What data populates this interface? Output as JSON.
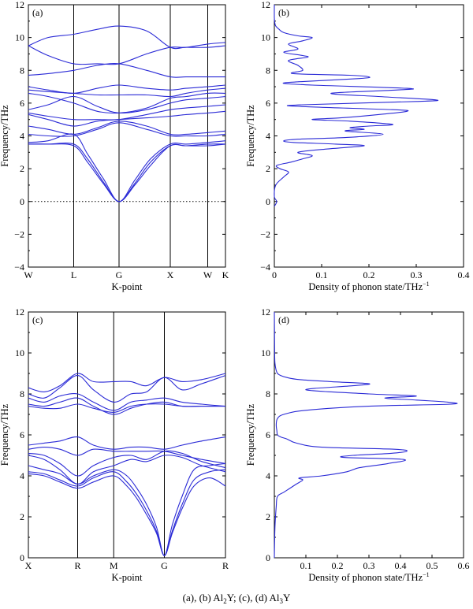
{
  "caption": {
    "prefix": "(a), (b) Al",
    "sub1": "2",
    "mid": "Y; (c), (d) Al",
    "sub2": "3",
    "suffix": "Y"
  },
  "colors": {
    "line": "#2a2ad6",
    "axis": "#000000"
  },
  "chart_data": [
    {
      "panel": "(a)",
      "type": "line",
      "subtype": "phonon-dispersion",
      "xlabel": "K-point",
      "ylabel": "Frequency/THz",
      "ylim": [
        -4,
        12
      ],
      "yticks": [
        -4,
        -2,
        0,
        2,
        4,
        6,
        8,
        10,
        12
      ],
      "kpoints": [
        {
          "label": "W",
          "x": 0
        },
        {
          "label": "L",
          "x": 0.23
        },
        {
          "label": "G",
          "x": 0.46
        },
        {
          "label": "X",
          "x": 0.72
        },
        {
          "label": "W",
          "x": 0.91
        },
        {
          "label": "K",
          "x": 1.0
        }
      ],
      "zero_line": true,
      "series": [
        {
          "x": [
            0,
            0.1,
            0.23,
            0.35,
            0.46,
            0.6,
            0.72,
            0.8,
            0.91,
            1.0
          ],
          "y": [
            9.5,
            10.0,
            10.2,
            10.5,
            10.7,
            10.4,
            9.4,
            9.4,
            9.4,
            9.5
          ]
        },
        {
          "x": [
            0,
            0.1,
            0.23,
            0.35,
            0.46,
            0.6,
            0.72,
            0.8,
            0.91,
            1.0
          ],
          "y": [
            9.5,
            8.9,
            8.4,
            8.4,
            8.4,
            9.0,
            9.4,
            9.4,
            9.6,
            9.7
          ]
        },
        {
          "x": [
            0,
            0.1,
            0.23,
            0.35,
            0.46,
            0.6,
            0.72,
            0.8,
            0.91,
            1.0
          ],
          "y": [
            7.7,
            7.8,
            8.0,
            8.3,
            8.4,
            8.0,
            7.6,
            7.6,
            7.6,
            7.6
          ]
        },
        {
          "x": [
            0,
            0.1,
            0.23,
            0.35,
            0.46,
            0.6,
            0.72,
            0.8,
            0.91,
            1.0
          ],
          "y": [
            7.0,
            6.8,
            6.6,
            6.9,
            7.1,
            6.9,
            6.8,
            6.9,
            7.0,
            7.1
          ]
        },
        {
          "x": [
            0,
            0.1,
            0.23,
            0.35,
            0.46,
            0.6,
            0.72,
            0.8,
            0.91,
            1.0
          ],
          "y": [
            6.8,
            6.7,
            6.6,
            6.5,
            6.5,
            6.5,
            6.4,
            6.6,
            6.8,
            6.9
          ]
        },
        {
          "x": [
            0,
            0.1,
            0.23,
            0.35,
            0.46,
            0.6,
            0.72,
            0.8,
            0.91,
            1.0
          ],
          "y": [
            6.6,
            6.4,
            6.0,
            5.5,
            5.4,
            5.7,
            6.3,
            6.4,
            6.6,
            6.6
          ]
        },
        {
          "x": [
            0,
            0.1,
            0.23,
            0.35,
            0.46,
            0.6,
            0.72,
            0.8,
            0.91,
            1.0
          ],
          "y": [
            5.6,
            5.9,
            6.4,
            5.8,
            5.4,
            5.6,
            6.0,
            6.2,
            6.3,
            6.4
          ]
        },
        {
          "x": [
            0,
            0.1,
            0.23,
            0.35,
            0.46,
            0.6,
            0.72,
            0.8,
            0.91,
            1.0
          ],
          "y": [
            5.4,
            5.2,
            5.0,
            5.0,
            5.0,
            5.3,
            5.6,
            5.7,
            5.8,
            5.9
          ]
        },
        {
          "x": [
            0,
            0.1,
            0.23,
            0.35,
            0.46,
            0.6,
            0.72,
            0.8,
            0.91,
            1.0
          ],
          "y": [
            5.3,
            5.0,
            4.6,
            4.9,
            5.0,
            5.1,
            5.2,
            5.3,
            5.4,
            5.5
          ]
        },
        {
          "x": [
            0,
            0.1,
            0.23,
            0.35,
            0.46,
            0.6,
            0.72,
            0.8,
            0.91,
            1.0
          ],
          "y": [
            4.6,
            4.4,
            4.1,
            4.5,
            4.9,
            4.6,
            4.1,
            4.1,
            4.2,
            4.3
          ]
        },
        {
          "x": [
            0,
            0.1,
            0.23,
            0.35,
            0.46,
            0.6,
            0.72,
            0.8,
            0.91,
            1.0
          ],
          "y": [
            4.1,
            4.0,
            4.0,
            4.4,
            4.8,
            4.4,
            4.0,
            4.0,
            4.0,
            4.1
          ]
        },
        {
          "x": [
            0,
            0.1,
            0.23,
            0.3,
            0.38,
            0.46,
            0.54,
            0.62,
            0.72,
            0.8,
            0.91,
            1.0
          ],
          "y": [
            3.6,
            3.7,
            4.1,
            2.9,
            1.4,
            0,
            1.3,
            2.6,
            3.5,
            3.5,
            3.6,
            3.7
          ]
        },
        {
          "x": [
            0,
            0.1,
            0.23,
            0.3,
            0.38,
            0.46,
            0.54,
            0.62,
            0.72,
            0.8,
            0.91,
            1.0
          ],
          "y": [
            3.5,
            3.5,
            3.5,
            2.6,
            1.2,
            0,
            1.1,
            2.4,
            3.4,
            3.4,
            3.5,
            3.5
          ]
        },
        {
          "x": [
            0,
            0.1,
            0.23,
            0.3,
            0.38,
            0.46,
            0.54,
            0.62,
            0.72,
            0.8,
            0.91,
            1.0
          ],
          "y": [
            3.5,
            3.5,
            3.4,
            2.4,
            1.1,
            0,
            1.0,
            2.2,
            3.4,
            3.4,
            3.4,
            3.5
          ]
        }
      ]
    },
    {
      "panel": "(b)",
      "type": "line",
      "subtype": "phonon-dos",
      "xlabel": "Density of phonon state/THz",
      "xlabel_sup": "−1",
      "ylabel": "Frequency/THz",
      "xlim": [
        0,
        0.4
      ],
      "ylim": [
        -4,
        12
      ],
      "xticks": [
        0,
        0.1,
        0.2,
        0.3,
        0.4
      ],
      "yticks": [
        -4,
        -2,
        0,
        2,
        4,
        6,
        8,
        10,
        12
      ],
      "freq": [
        -0.3,
        0,
        0.3,
        1.0,
        1.5,
        1.8,
        2.0,
        2.2,
        2.4,
        2.6,
        2.8,
        3.0,
        3.2,
        3.4,
        3.5,
        3.6,
        3.7,
        3.8,
        3.9,
        4.1,
        4.3,
        4.4,
        4.5,
        4.6,
        4.7,
        4.9,
        5.0,
        5.1,
        5.3,
        5.5,
        5.6,
        5.8,
        5.9,
        6.1,
        6.2,
        6.4,
        6.6,
        6.8,
        6.9,
        7.1,
        7.2,
        7.3,
        7.5,
        7.6,
        7.7,
        7.8,
        8.0,
        8.3,
        8.6,
        8.8,
        8.9,
        9.1,
        9.3,
        9.6,
        9.8,
        10.0,
        10.1,
        10.3,
        10.5,
        10.7,
        10.9,
        11.2,
        12.0
      ],
      "dos": [
        0,
        0.005,
        0,
        0.003,
        0.02,
        0.03,
        0.012,
        0.005,
        0.035,
        0.06,
        0.08,
        0.05,
        0.11,
        0.19,
        0.13,
        0.04,
        0.02,
        0.05,
        0.15,
        0.23,
        0.15,
        0.19,
        0.16,
        0.2,
        0.25,
        0.16,
        0.08,
        0.14,
        0.22,
        0.28,
        0.25,
        0.05,
        0.06,
        0.3,
        0.34,
        0.22,
        0.12,
        0.26,
        0.28,
        0.08,
        0.02,
        0.05,
        0.18,
        0.2,
        0.16,
        0.04,
        0.06,
        0.05,
        0.03,
        0.07,
        0.06,
        0.02,
        0.05,
        0.03,
        0.06,
        0.08,
        0.05,
        0.02,
        0.01,
        0.003,
        0.001,
        0,
        0
      ]
    },
    {
      "panel": "(c)",
      "type": "line",
      "subtype": "phonon-dispersion",
      "xlabel": "K-point",
      "ylabel": "Frequency/THz",
      "ylim": [
        0,
        12
      ],
      "yticks": [
        0,
        2,
        4,
        6,
        8,
        10,
        12
      ],
      "kpoints": [
        {
          "label": "X",
          "x": 0
        },
        {
          "label": "R",
          "x": 0.25
        },
        {
          "label": "M",
          "x": 0.433
        },
        {
          "label": "G",
          "x": 0.69
        },
        {
          "label": "R",
          "x": 1.0
        }
      ],
      "series": [
        {
          "x": [
            0,
            0.08,
            0.16,
            0.25,
            0.33,
            0.433,
            0.52,
            0.6,
            0.69,
            0.78,
            0.88,
            1.0
          ],
          "y": [
            8.3,
            8.1,
            8.4,
            9.0,
            8.6,
            8.6,
            8.6,
            8.4,
            8.8,
            8.6,
            8.7,
            9.0
          ]
        },
        {
          "x": [
            0,
            0.08,
            0.16,
            0.25,
            0.33,
            0.433,
            0.52,
            0.6,
            0.69,
            0.78,
            0.88,
            1.0
          ],
          "y": [
            8.0,
            7.8,
            8.3,
            8.9,
            8.2,
            7.6,
            8.0,
            8.1,
            8.8,
            8.2,
            8.5,
            8.9
          ]
        },
        {
          "x": [
            0,
            0.08,
            0.16,
            0.25,
            0.33,
            0.433,
            0.52,
            0.6,
            0.69,
            0.78,
            0.88,
            1.0
          ],
          "y": [
            7.8,
            7.6,
            7.9,
            8.0,
            7.6,
            7.2,
            7.6,
            7.7,
            7.8,
            7.6,
            7.5,
            7.4
          ]
        },
        {
          "x": [
            0,
            0.08,
            0.16,
            0.25,
            0.33,
            0.433,
            0.52,
            0.6,
            0.69,
            0.78,
            0.88,
            1.0
          ],
          "y": [
            7.5,
            7.4,
            7.6,
            7.8,
            7.4,
            7.0,
            7.3,
            7.5,
            7.6,
            7.4,
            7.4,
            7.4
          ]
        },
        {
          "x": [
            0,
            0.08,
            0.16,
            0.25,
            0.33,
            0.433,
            0.52,
            0.6,
            0.69,
            0.78,
            0.88,
            1.0
          ],
          "y": [
            7.4,
            7.3,
            7.3,
            7.5,
            7.3,
            7.1,
            7.4,
            7.5,
            7.5,
            7.4,
            7.4,
            7.4
          ]
        },
        {
          "x": [
            0,
            0.08,
            0.16,
            0.25,
            0.33,
            0.433,
            0.52,
            0.6,
            0.69,
            0.78,
            0.88,
            1.0
          ],
          "y": [
            5.5,
            5.6,
            5.7,
            5.9,
            5.5,
            5.3,
            5.4,
            5.4,
            5.3,
            5.5,
            5.7,
            5.9
          ]
        },
        {
          "x": [
            0,
            0.08,
            0.16,
            0.25,
            0.33,
            0.433,
            0.52,
            0.6,
            0.69,
            0.78,
            0.88,
            1.0
          ],
          "y": [
            5.3,
            5.4,
            5.3,
            5.0,
            5.3,
            5.2,
            5.2,
            5.2,
            5.2,
            5.0,
            4.8,
            4.6
          ]
        },
        {
          "x": [
            0,
            0.08,
            0.16,
            0.25,
            0.33,
            0.433,
            0.52,
            0.6,
            0.69,
            0.78,
            0.88,
            1.0
          ],
          "y": [
            5.1,
            5.0,
            4.6,
            4.0,
            4.5,
            4.9,
            5.0,
            4.8,
            5.2,
            5.1,
            4.7,
            4.4
          ]
        },
        {
          "x": [
            0,
            0.08,
            0.16,
            0.25,
            0.33,
            0.433,
            0.52,
            0.6,
            0.69,
            0.78,
            0.88,
            1.0
          ],
          "y": [
            5.0,
            4.8,
            4.3,
            3.6,
            4.2,
            4.5,
            4.8,
            4.7,
            5.0,
            4.9,
            4.5,
            4.2
          ]
        },
        {
          "x": [
            0,
            0.08,
            0.16,
            0.25,
            0.33,
            0.433,
            0.5,
            0.55,
            0.6,
            0.65,
            0.69,
            0.73,
            0.78,
            0.84,
            0.92,
            1.0
          ],
          "y": [
            4.5,
            4.3,
            4.1,
            3.6,
            4.0,
            4.3,
            4.0,
            3.4,
            2.6,
            1.5,
            0.1,
            1.6,
            3.0,
            4.3,
            4.5,
            4.6
          ]
        },
        {
          "x": [
            0,
            0.08,
            0.16,
            0.25,
            0.33,
            0.433,
            0.5,
            0.55,
            0.6,
            0.65,
            0.69,
            0.73,
            0.78,
            0.84,
            0.92,
            1.0
          ],
          "y": [
            4.2,
            4.1,
            3.8,
            3.5,
            3.9,
            4.2,
            3.7,
            3.1,
            2.3,
            1.3,
            0.1,
            1.3,
            2.6,
            3.8,
            4.2,
            4.3
          ]
        },
        {
          "x": [
            0,
            0.08,
            0.16,
            0.25,
            0.33,
            0.433,
            0.5,
            0.55,
            0.6,
            0.65,
            0.69,
            0.73,
            0.78,
            0.84,
            0.92,
            1.0
          ],
          "y": [
            4.1,
            4.0,
            3.7,
            3.4,
            3.7,
            4.0,
            3.5,
            2.9,
            2.1,
            1.2,
            0.1,
            1.2,
            2.4,
            3.5,
            3.9,
            3.5
          ]
        }
      ]
    },
    {
      "panel": "(d)",
      "type": "line",
      "subtype": "phonon-dos",
      "xlabel": "Density of phonon state/THz",
      "xlabel_sup": "−1",
      "ylabel": "Frequency/THz",
      "xlim": [
        0,
        0.6
      ],
      "ylim": [
        0,
        12
      ],
      "xticks": [
        0.1,
        0.2,
        0.3,
        0.4,
        0.5,
        0.6
      ],
      "yticks": [
        0,
        2,
        4,
        6,
        8,
        10,
        12
      ],
      "freq": [
        0,
        1.5,
        2.5,
        3.0,
        3.2,
        3.4,
        3.6,
        3.8,
        3.9,
        4.0,
        4.2,
        4.4,
        4.6,
        4.8,
        4.9,
        5.0,
        5.1,
        5.2,
        5.3,
        5.4,
        5.6,
        5.8,
        5.9,
        6.0,
        6.2,
        6.5,
        6.8,
        7.0,
        7.2,
        7.4,
        7.5,
        7.6,
        7.7,
        7.8,
        7.9,
        8.0,
        8.2,
        8.4,
        8.5,
        8.6,
        8.7,
        8.8,
        8.9,
        9.0,
        9.2,
        9.5,
        10.0,
        12.0
      ],
      "dos": [
        0,
        0.002,
        0.006,
        0.01,
        0.03,
        0.05,
        0.07,
        0.09,
        0.08,
        0.15,
        0.23,
        0.27,
        0.36,
        0.41,
        0.22,
        0.25,
        0.37,
        0.42,
        0.38,
        0.15,
        0.07,
        0.04,
        0.02,
        0.01,
        0.008,
        0.006,
        0.01,
        0.03,
        0.1,
        0.3,
        0.56,
        0.55,
        0.45,
        0.35,
        0.45,
        0.3,
        0.1,
        0.25,
        0.3,
        0.18,
        0.08,
        0.04,
        0.02,
        0.01,
        0.005,
        0.002,
        0.001,
        0
      ]
    }
  ]
}
